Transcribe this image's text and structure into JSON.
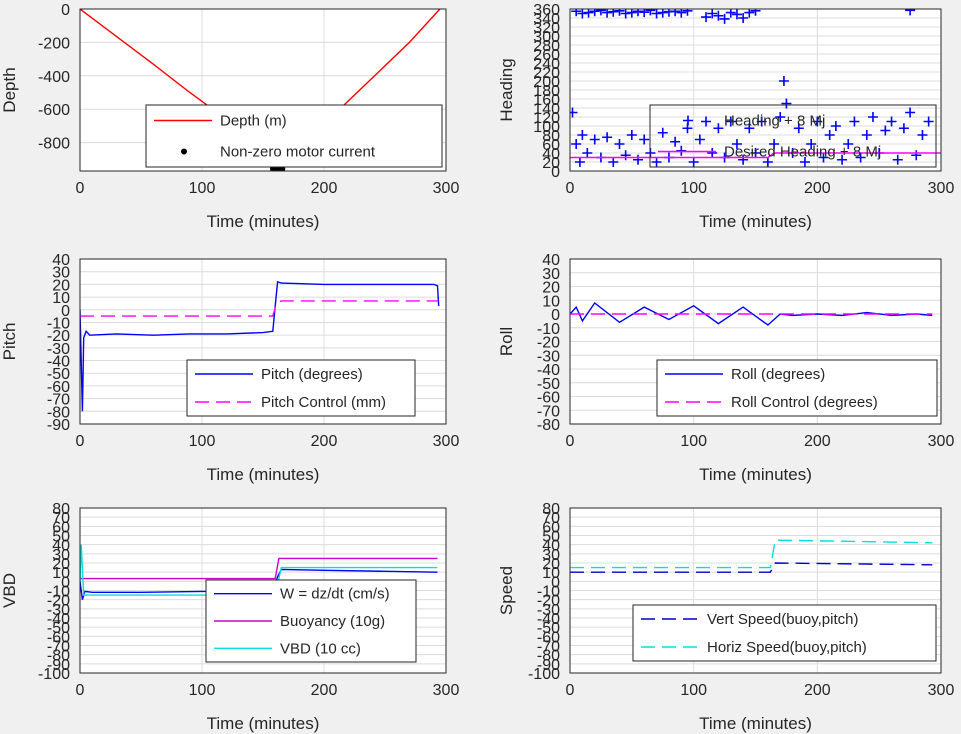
{
  "chart_data": [
    {
      "id": "depth",
      "type": "line",
      "xlabel": "Time (minutes)",
      "ylabel": "Depth",
      "xlim": [
        0,
        300
      ],
      "ylim": [
        -970,
        0
      ],
      "xticks": [
        0,
        100,
        200,
        300
      ],
      "yticks": [
        0,
        -200,
        -400,
        -600,
        -800
      ],
      "grid": true,
      "legend_position": "bottom-right",
      "series": [
        {
          "name": "Depth (m)",
          "style": "line",
          "color": "#ff0000",
          "x": [
            0,
            30,
            60,
            90,
            120,
            150,
            160,
            165,
            180,
            210,
            240,
            270,
            295
          ],
          "y": [
            0,
            -165,
            -330,
            -500,
            -660,
            -830,
            -960,
            -960,
            -830,
            -620,
            -410,
            -200,
            0
          ]
        },
        {
          "name": "Non-zero motor current",
          "style": "dots",
          "color": "#000000",
          "x": [
            159,
            160,
            161,
            162,
            163,
            164,
            165
          ],
          "y": [
            -955,
            -960,
            -962,
            -963,
            -962,
            -960,
            -955
          ]
        }
      ]
    },
    {
      "id": "heading",
      "type": "scatter",
      "xlabel": "Time (minutes)",
      "ylabel": "Heading",
      "xlim": [
        0,
        300
      ],
      "ylim": [
        0,
        360
      ],
      "xticks": [
        0,
        100,
        200,
        300
      ],
      "yticks": [
        0,
        20,
        40,
        60,
        80,
        100,
        120,
        140,
        160,
        180,
        200,
        220,
        240,
        260,
        280,
        300,
        320,
        340,
        360
      ],
      "grid": true,
      "legend_position": "bottom-right",
      "series": [
        {
          "name": "Heading + 8 Mj",
          "style": "plus",
          "color": "#0000ff",
          "x": [
            2,
            5,
            8,
            10,
            14,
            20,
            25,
            30,
            35,
            40,
            45,
            50,
            55,
            60,
            65,
            70,
            75,
            80,
            85,
            90,
            95,
            100,
            105,
            110,
            115,
            120,
            125,
            130,
            135,
            140,
            145,
            150,
            155,
            160,
            165,
            170,
            173,
            175,
            180,
            185,
            190,
            195,
            200,
            205,
            210,
            215,
            220,
            225,
            230,
            235,
            240,
            245,
            250,
            255,
            260,
            265,
            270,
            275,
            280,
            285,
            290,
            5,
            10,
            15,
            20,
            25,
            30,
            35,
            40,
            45,
            50,
            55,
            60,
            65,
            70,
            75,
            80,
            85,
            90,
            95,
            110,
            115,
            120,
            125,
            130,
            135,
            140,
            145,
            150,
            275
          ],
          "y": [
            130,
            60,
            20,
            80,
            40,
            70,
            30,
            75,
            20,
            60,
            35,
            80,
            25,
            70,
            40,
            20,
            85,
            30,
            65,
            45,
            95,
            20,
            70,
            110,
            40,
            95,
            30,
            110,
            60,
            25,
            95,
            40,
            110,
            20,
            60,
            120,
            200,
            150,
            40,
            95,
            20,
            60,
            110,
            30,
            80,
            100,
            25,
            60,
            110,
            30,
            80,
            120,
            40,
            90,
            110,
            25,
            95,
            130,
            35,
            80,
            110,
            355,
            350,
            352,
            355,
            357,
            352,
            354,
            356,
            350,
            352,
            355,
            353,
            357,
            350,
            352,
            354,
            355,
            352,
            356,
            342,
            350,
            345,
            338,
            352,
            348,
            340,
            352,
            356,
            357
          ]
        },
        {
          "name": "Desired Heading + 8 Mj",
          "style": "line",
          "color": "#ff00ff",
          "x": [
            0,
            160,
            165,
            300
          ],
          "y": [
            30,
            30,
            40,
            40
          ]
        }
      ]
    },
    {
      "id": "pitch",
      "type": "line",
      "xlabel": "Time (minutes)",
      "ylabel": "Pitch",
      "xlim": [
        0,
        300
      ],
      "ylim": [
        -90,
        40
      ],
      "xticks": [
        0,
        100,
        200,
        300
      ],
      "yticks": [
        40,
        30,
        20,
        10,
        0,
        -10,
        -20,
        -30,
        -40,
        -50,
        -60,
        -70,
        -80,
        -90
      ],
      "grid": true,
      "legend_position": "bottom-right",
      "series": [
        {
          "name": "Pitch (degrees)",
          "style": "line",
          "color": "#0000ff",
          "x": [
            0,
            2,
            3,
            5,
            8,
            30,
            60,
            90,
            120,
            150,
            158,
            160,
            162,
            165,
            200,
            250,
            290,
            293,
            294
          ],
          "y": [
            0,
            -80,
            -22,
            -17,
            -20,
            -19,
            -20,
            -19,
            -19,
            -18,
            -17,
            3,
            22,
            21,
            20,
            20,
            20,
            19,
            3
          ]
        },
        {
          "name": "Pitch Control (mm)",
          "style": "dashed",
          "color": "#ff00ff",
          "x": [
            0,
            158,
            161,
            165,
            293
          ],
          "y": [
            -5,
            -5,
            5,
            7,
            7
          ]
        }
      ]
    },
    {
      "id": "roll",
      "type": "line",
      "xlabel": "Time (minutes)",
      "ylabel": "Roll",
      "xlim": [
        0,
        300
      ],
      "ylim": [
        -80,
        40
      ],
      "xticks": [
        0,
        100,
        200,
        300
      ],
      "yticks": [
        40,
        30,
        20,
        10,
        0,
        -10,
        -20,
        -30,
        -40,
        -50,
        -60,
        -70,
        -80
      ],
      "grid": true,
      "legend_position": "bottom-right",
      "series": [
        {
          "name": "Roll (degrees)",
          "style": "line",
          "color": "#0000ff",
          "x": [
            0,
            5,
            10,
            20,
            40,
            60,
            80,
            100,
            120,
            140,
            160,
            170,
            180,
            200,
            220,
            240,
            260,
            280,
            293
          ],
          "y": [
            0,
            5,
            -5,
            8,
            -6,
            5,
            -4,
            6,
            -7,
            5,
            -8,
            0,
            -1,
            0,
            -1,
            1,
            -1,
            0,
            -1
          ]
        },
        {
          "name": "Roll Control (degrees)",
          "style": "dashed",
          "color": "#ff00ff",
          "x": [
            0,
            293
          ],
          "y": [
            0,
            0
          ]
        }
      ]
    },
    {
      "id": "vbd",
      "type": "line",
      "xlabel": "Time (minutes)",
      "ylabel": "VBD",
      "xlim": [
        0,
        300
      ],
      "ylim": [
        -100,
        80
      ],
      "xticks": [
        0,
        100,
        200,
        300
      ],
      "yticks": [
        80,
        70,
        60,
        50,
        40,
        30,
        20,
        10,
        0,
        -10,
        -20,
        -30,
        -40,
        -50,
        -60,
        -70,
        -80,
        -90,
        -100
      ],
      "grid": true,
      "legend_position": "bottom-right",
      "series": [
        {
          "name": "W = dz/dt (cm/s)",
          "style": "line",
          "color": "#0000ff",
          "x": [
            0,
            2,
            4,
            10,
            50,
            100,
            158,
            162,
            165,
            200,
            250,
            293
          ],
          "y": [
            0,
            -20,
            -11,
            -12,
            -12,
            -11,
            -11,
            5,
            13,
            12,
            11,
            10
          ]
        },
        {
          "name": "Buoyancy (10g)",
          "style": "line",
          "color": "#cc00cc",
          "x": [
            0,
            3,
            160,
            163,
            293
          ],
          "y": [
            3,
            3,
            3,
            25,
            25
          ]
        },
        {
          "name": "VBD (10 cc)",
          "style": "line",
          "color": "#00e0e0",
          "x": [
            0,
            1,
            3,
            5,
            160,
            165,
            293
          ],
          "y": [
            0,
            40,
            -15,
            -15,
            -15,
            15,
            15
          ]
        }
      ]
    },
    {
      "id": "speed",
      "type": "line",
      "xlabel": "Time (minutes)",
      "ylabel": "Speed",
      "xlim": [
        0,
        300
      ],
      "ylim": [
        -100,
        80
      ],
      "xticks": [
        0,
        100,
        200,
        300
      ],
      "yticks": [
        80,
        70,
        60,
        50,
        40,
        30,
        20,
        10,
        0,
        -10,
        -20,
        -30,
        -40,
        -50,
        -60,
        -70,
        -80,
        -90,
        -100
      ],
      "grid": true,
      "legend_position": "bottom-right",
      "series": [
        {
          "name": "Vert Speed(buoy,pitch)",
          "style": "dashed",
          "color": "#0000cc",
          "x": [
            0,
            162,
            166,
            293
          ],
          "y": [
            10,
            10,
            20,
            18
          ]
        },
        {
          "name": "Horiz Speed(buoy,pitch)",
          "style": "dashed",
          "color": "#00e0e0",
          "x": [
            0,
            162,
            166,
            293
          ],
          "y": [
            15,
            15,
            45,
            42
          ]
        }
      ]
    }
  ]
}
